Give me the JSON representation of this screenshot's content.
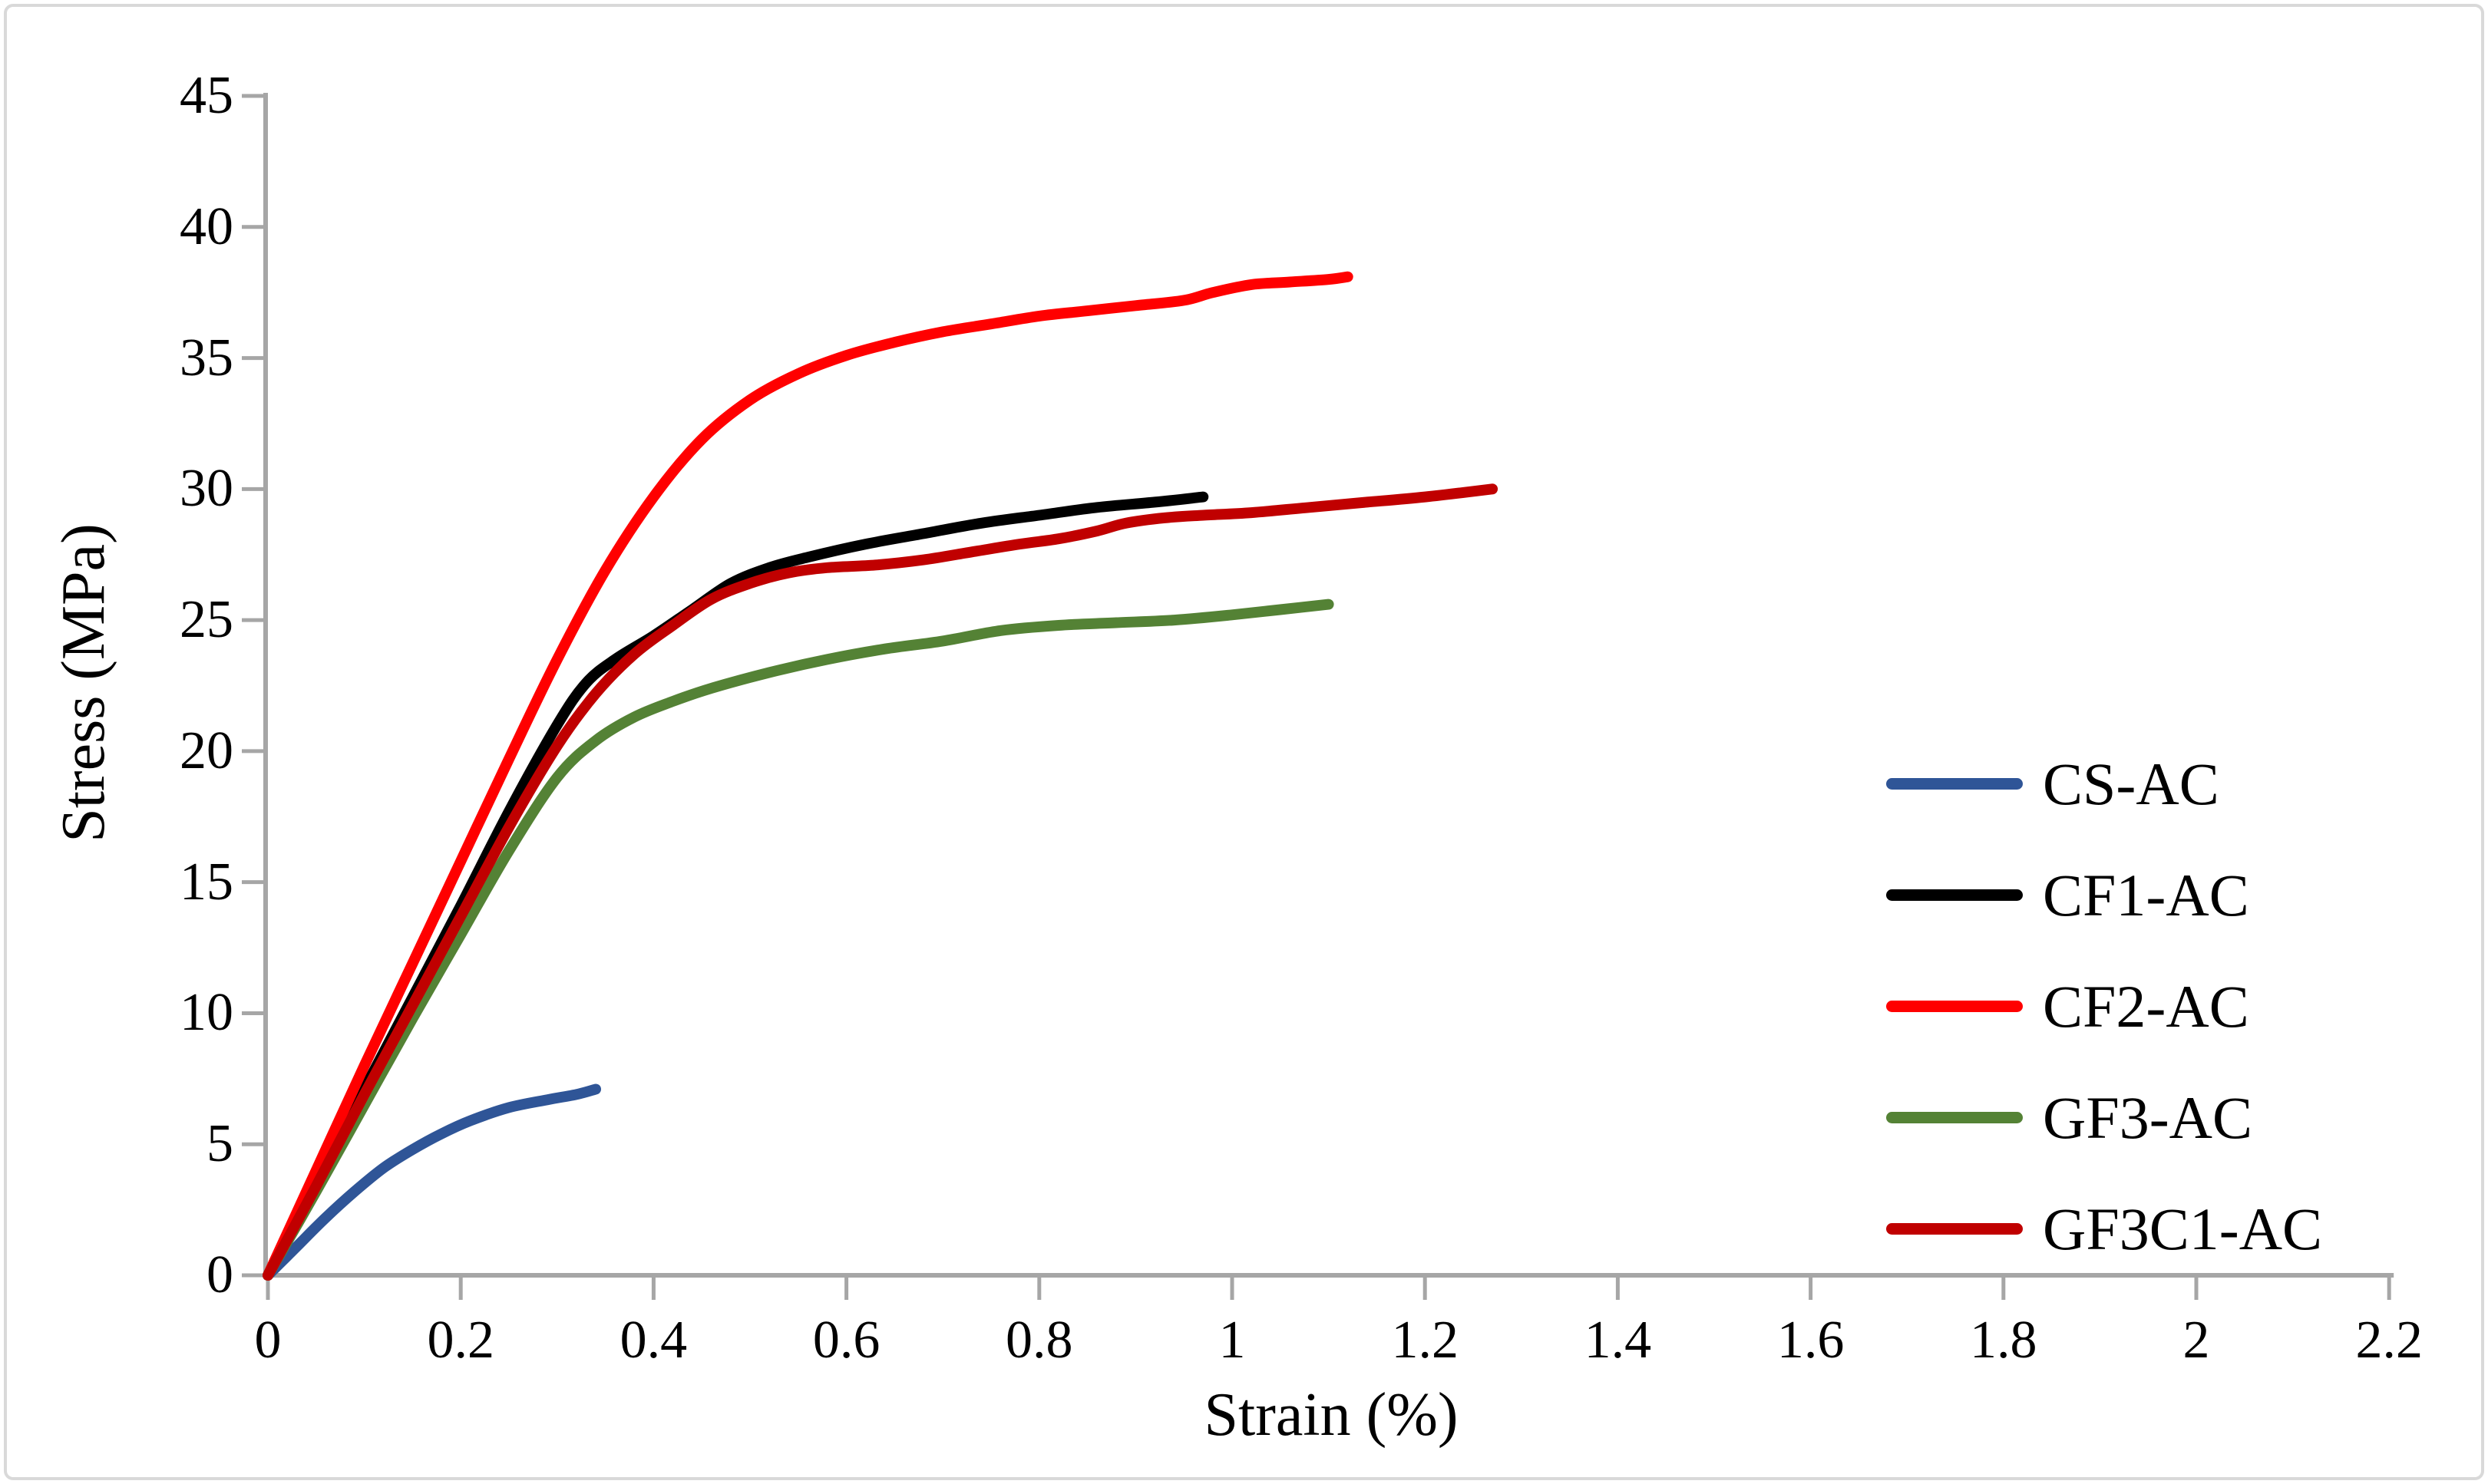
{
  "figure": {
    "background": "#ffffff",
    "border_color": "#d9d9d9",
    "axis_color": "#a6a6a6"
  },
  "chart_data": {
    "type": "line",
    "title": "",
    "xlabel": "Strain (%)",
    "ylabel": "Stress (MPa)",
    "xlim": [
      0,
      2.2
    ],
    "ylim": [
      0,
      45
    ],
    "grid": false,
    "legend_position": "middle-right",
    "xticks": [
      0,
      0.2,
      0.4,
      0.6,
      0.8,
      1,
      1.2,
      1.4,
      1.6,
      1.8,
      2,
      2.2
    ],
    "xtick_labels": [
      "0",
      "0.2",
      "0.4",
      "0.6",
      "0.8",
      "1",
      "1.2",
      "1.4",
      "1.6",
      "1.8",
      "2",
      "2.2"
    ],
    "yticks": [
      0,
      5,
      10,
      15,
      20,
      25,
      30,
      35,
      40,
      45
    ],
    "ytick_labels": [
      "0",
      "5",
      "10",
      "15",
      "20",
      "25",
      "30",
      "35",
      "40",
      "45"
    ],
    "series": [
      {
        "name": "CS-AC",
        "color": "#2F5597",
        "points": [
          [
            0,
            0
          ],
          [
            0.03,
            1.1
          ],
          [
            0.06,
            2.2
          ],
          [
            0.09,
            3.2
          ],
          [
            0.12,
            4.1
          ],
          [
            0.15,
            4.8
          ],
          [
            0.18,
            5.4
          ],
          [
            0.21,
            5.9
          ],
          [
            0.25,
            6.4
          ],
          [
            0.29,
            6.7
          ],
          [
            0.32,
            6.9
          ],
          [
            0.34,
            7.1
          ]
        ]
      },
      {
        "name": "CF1-AC",
        "color": "#000000",
        "points": [
          [
            0,
            0
          ],
          [
            0.05,
            3.5
          ],
          [
            0.1,
            7.1
          ],
          [
            0.15,
            10.6
          ],
          [
            0.2,
            14.1
          ],
          [
            0.25,
            17.7
          ],
          [
            0.3,
            21.0
          ],
          [
            0.33,
            22.6
          ],
          [
            0.36,
            23.5
          ],
          [
            0.4,
            24.4
          ],
          [
            0.44,
            25.4
          ],
          [
            0.48,
            26.4
          ],
          [
            0.52,
            27.0
          ],
          [
            0.56,
            27.4
          ],
          [
            0.62,
            27.9
          ],
          [
            0.68,
            28.3
          ],
          [
            0.74,
            28.7
          ],
          [
            0.8,
            29.0
          ],
          [
            0.86,
            29.3
          ],
          [
            0.92,
            29.5
          ],
          [
            0.97,
            29.7
          ]
        ]
      },
      {
        "name": "CF2-AC",
        "color": "#FF0000",
        "points": [
          [
            0,
            0
          ],
          [
            0.05,
            4.0
          ],
          [
            0.1,
            8.0
          ],
          [
            0.15,
            11.9
          ],
          [
            0.2,
            15.8
          ],
          [
            0.25,
            19.7
          ],
          [
            0.3,
            23.5
          ],
          [
            0.35,
            26.9
          ],
          [
            0.4,
            29.7
          ],
          [
            0.45,
            31.9
          ],
          [
            0.5,
            33.4
          ],
          [
            0.55,
            34.4
          ],
          [
            0.6,
            35.1
          ],
          [
            0.65,
            35.6
          ],
          [
            0.7,
            36.0
          ],
          [
            0.75,
            36.3
          ],
          [
            0.8,
            36.6
          ],
          [
            0.85,
            36.8
          ],
          [
            0.9,
            37.0
          ],
          [
            0.95,
            37.2
          ],
          [
            0.98,
            37.5
          ],
          [
            1.02,
            37.8
          ],
          [
            1.06,
            37.9
          ],
          [
            1.1,
            38.0
          ],
          [
            1.12,
            38.1
          ]
        ]
      },
      {
        "name": "GF3-AC",
        "color": "#548235",
        "points": [
          [
            0,
            0
          ],
          [
            0.05,
            3.2
          ],
          [
            0.1,
            6.5
          ],
          [
            0.15,
            9.8
          ],
          [
            0.2,
            13.0
          ],
          [
            0.25,
            16.2
          ],
          [
            0.3,
            19.0
          ],
          [
            0.34,
            20.4
          ],
          [
            0.38,
            21.3
          ],
          [
            0.42,
            21.9
          ],
          [
            0.46,
            22.4
          ],
          [
            0.52,
            23.0
          ],
          [
            0.58,
            23.5
          ],
          [
            0.64,
            23.9
          ],
          [
            0.7,
            24.2
          ],
          [
            0.76,
            24.6
          ],
          [
            0.82,
            24.8
          ],
          [
            0.88,
            24.9
          ],
          [
            0.94,
            25.0
          ],
          [
            1.0,
            25.2
          ],
          [
            1.05,
            25.4
          ],
          [
            1.1,
            25.6
          ]
        ]
      },
      {
        "name": "GF3C1-AC",
        "color": "#C00000",
        "points": [
          [
            0,
            0
          ],
          [
            0.05,
            3.4
          ],
          [
            0.1,
            6.9
          ],
          [
            0.15,
            10.3
          ],
          [
            0.2,
            13.7
          ],
          [
            0.25,
            17.1
          ],
          [
            0.3,
            20.2
          ],
          [
            0.34,
            22.2
          ],
          [
            0.38,
            23.7
          ],
          [
            0.42,
            24.8
          ],
          [
            0.46,
            25.8
          ],
          [
            0.5,
            26.4
          ],
          [
            0.54,
            26.8
          ],
          [
            0.58,
            27.0
          ],
          [
            0.63,
            27.1
          ],
          [
            0.68,
            27.3
          ],
          [
            0.73,
            27.6
          ],
          [
            0.78,
            27.9
          ],
          [
            0.82,
            28.1
          ],
          [
            0.86,
            28.4
          ],
          [
            0.89,
            28.7
          ],
          [
            0.93,
            28.9
          ],
          [
            0.97,
            29.0
          ],
          [
            1.02,
            29.1
          ],
          [
            1.08,
            29.3
          ],
          [
            1.14,
            29.5
          ],
          [
            1.2,
            29.7
          ],
          [
            1.27,
            30.0
          ]
        ]
      }
    ]
  }
}
